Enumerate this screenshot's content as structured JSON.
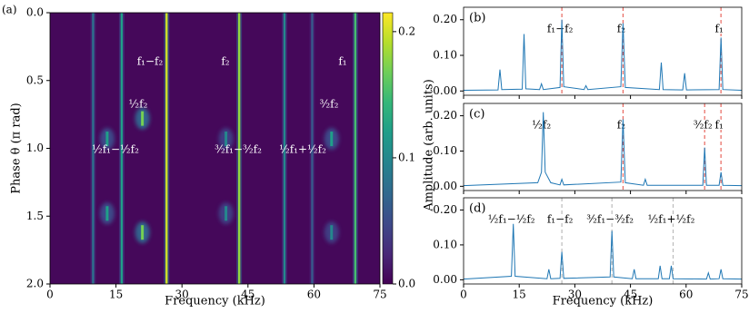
{
  "chart_data": [
    {
      "type": "heatmap",
      "panel": "(a)",
      "xlabel": "Frequency (kHz)",
      "ylabel": "Phase θ (π rad)",
      "xlim": [
        0,
        75
      ],
      "ylim": [
        0,
        2
      ],
      "y_inverted": true,
      "xticks": [
        0,
        15,
        30,
        45,
        60,
        75
      ],
      "yticks": [
        {
          "value": 0,
          "label": "0.0"
        },
        0.5,
        {
          "value": 1,
          "label": "1.0"
        },
        1.5,
        {
          "value": 2,
          "label": "2.0"
        }
      ],
      "clim": [
        0,
        0.215
      ],
      "colorbar_ticks": [
        {
          "value": 0,
          "label": "0.0"
        },
        0.1,
        0.2
      ],
      "colormap": "viridis",
      "columns": [
        {
          "x": 9.8,
          "intensity": 0.08
        },
        {
          "x": 16.3,
          "intensity": 0.12
        },
        {
          "x": 26.5,
          "intensity": 0.2
        },
        {
          "x": 43,
          "intensity": 0.18
        },
        {
          "x": 53.3,
          "intensity": 0.1
        },
        {
          "x": 59.6,
          "intensity": 0.06
        },
        {
          "x": 69.4,
          "intensity": 0.15
        }
      ],
      "spots": [
        {
          "x": 21,
          "y": 0.78,
          "intensity": 0.17
        },
        {
          "x": 21,
          "y": 1.62,
          "intensity": 0.17
        },
        {
          "x": 13,
          "y": 0.93,
          "intensity": 0.12
        },
        {
          "x": 13,
          "y": 1.48,
          "intensity": 0.12
        },
        {
          "x": 40,
          "y": 0.93,
          "intensity": 0.1
        },
        {
          "x": 40,
          "y": 1.48,
          "intensity": 0.1
        },
        {
          "x": 64,
          "y": 0.93,
          "intensity": 0.12
        },
        {
          "x": 64,
          "y": 1.62,
          "intensity": 0.1
        }
      ],
      "annotations": [
        "f₁−f₂",
        "f₂",
        "f₁",
        "½f₂",
        "³⁄₂f₂",
        "½f₁−½f₂",
        "³⁄₂f₁−³⁄₂f₂",
        "½f₁+½f₂"
      ]
    },
    {
      "type": "line",
      "panel": "(b)",
      "color": "#1f77b4",
      "xlim": [
        0,
        75
      ],
      "ylim": [
        -0.012,
        0.235
      ],
      "xticks": [
        0,
        15,
        30,
        45,
        60,
        75
      ],
      "show_xtick_labels": false,
      "yticks": [
        {
          "value": 0,
          "label": "0.00"
        },
        {
          "value": 0.1,
          "label": "0.10"
        },
        {
          "value": 0.2,
          "label": "0.20"
        }
      ],
      "x": [
        0,
        9.3,
        9.8,
        10.3,
        15.8,
        16.3,
        16.8,
        20.5,
        21,
        21.5,
        26,
        26.5,
        27,
        32.5,
        33,
        33.5,
        42.4,
        43,
        43.6,
        52.8,
        53.3,
        53.8,
        59.1,
        59.6,
        60.1,
        68.9,
        69.4,
        69.9,
        75
      ],
      "values": [
        0.002,
        0.003,
        0.06,
        0.004,
        0.005,
        0.16,
        0.006,
        0.004,
        0.02,
        0.004,
        0.01,
        0.2,
        0.012,
        0.004,
        0.015,
        0.004,
        0.012,
        0.19,
        0.01,
        0.004,
        0.08,
        0.004,
        0.003,
        0.05,
        0.003,
        0.004,
        0.15,
        0.004,
        0.002
      ],
      "markers": [
        {
          "x": 26.5,
          "label": "f₁−f₂",
          "line": true
        },
        {
          "x": 43,
          "label": "f₂",
          "line": true
        },
        {
          "x": 69.4,
          "label": "f₁",
          "line": true
        }
      ],
      "marker_color": "#e8665e"
    },
    {
      "type": "line",
      "panel": "(c)",
      "color": "#1f77b4",
      "ylabel": "Amplitude (arb. units)",
      "xlim": [
        0,
        75
      ],
      "ylim": [
        -0.012,
        0.235
      ],
      "xticks": [
        0,
        15,
        30,
        45,
        60,
        75
      ],
      "show_xtick_labels": false,
      "yticks": [
        {
          "value": 0,
          "label": "0.00"
        },
        {
          "value": 0.1,
          "label": "0.10"
        },
        {
          "value": 0.2,
          "label": "0.20"
        }
      ],
      "x": [
        0,
        20,
        21,
        21.5,
        22,
        23.5,
        26,
        26.5,
        27,
        42.4,
        43,
        43.6,
        48.5,
        49,
        49.5,
        64.5,
        65,
        65.5,
        68.9,
        69.4,
        69.9,
        75
      ],
      "values": [
        0.002,
        0.01,
        0.04,
        0.21,
        0.04,
        0.01,
        0.004,
        0.02,
        0.004,
        0.012,
        0.19,
        0.01,
        0.003,
        0.02,
        0.003,
        0.003,
        0.11,
        0.003,
        0.003,
        0.04,
        0.003,
        0.002
      ],
      "markers": [
        {
          "x": 21.5,
          "label": "½f₂",
          "line": false
        },
        {
          "x": 43,
          "label": "f₂",
          "line": true
        },
        {
          "x": 65,
          "label": "³⁄₂f₂",
          "line": true
        },
        {
          "x": 69.4,
          "label": "f₁",
          "line": true
        }
      ],
      "marker_color": "#e8665e"
    },
    {
      "type": "line",
      "panel": "(d)",
      "color": "#1f77b4",
      "xlabel": "Frequency (kHz)",
      "xlim": [
        0,
        75
      ],
      "ylim": [
        -0.012,
        0.235
      ],
      "xticks": [
        0,
        15,
        30,
        45,
        60,
        75
      ],
      "show_xtick_labels": true,
      "yticks": [
        {
          "value": 0,
          "label": "0.00"
        },
        {
          "value": 0.1,
          "label": "0.10"
        },
        {
          "value": 0.2,
          "label": "0.20"
        }
      ],
      "x": [
        0,
        12.9,
        13.4,
        13.9,
        22.5,
        23,
        23.5,
        26,
        26.5,
        27,
        39.5,
        40,
        40.5,
        45.5,
        46,
        46.5,
        52.5,
        53,
        53.5,
        55.5,
        56,
        56.5,
        65.5,
        66,
        66.5,
        68.9,
        69.4,
        69.9,
        75
      ],
      "values": [
        0.002,
        0.01,
        0.16,
        0.01,
        0.003,
        0.03,
        0.003,
        0.004,
        0.08,
        0.004,
        0.008,
        0.14,
        0.008,
        0.003,
        0.03,
        0.003,
        0.003,
        0.04,
        0.003,
        0.003,
        0.04,
        0.003,
        0.002,
        0.02,
        0.002,
        0.003,
        0.03,
        0.003,
        0.002
      ],
      "markers": [
        {
          "x": 13.4,
          "label": "½f₁−½f₂",
          "line": false
        },
        {
          "x": 26.5,
          "label": "f₁−f₂",
          "line": true
        },
        {
          "x": 40,
          "label": "³⁄₂f₁−³⁄₂f₂",
          "line": true
        },
        {
          "x": 56.5,
          "label": "½f₁+½f₂",
          "line": true
        }
      ],
      "marker_color": "#bbbbbb"
    }
  ]
}
